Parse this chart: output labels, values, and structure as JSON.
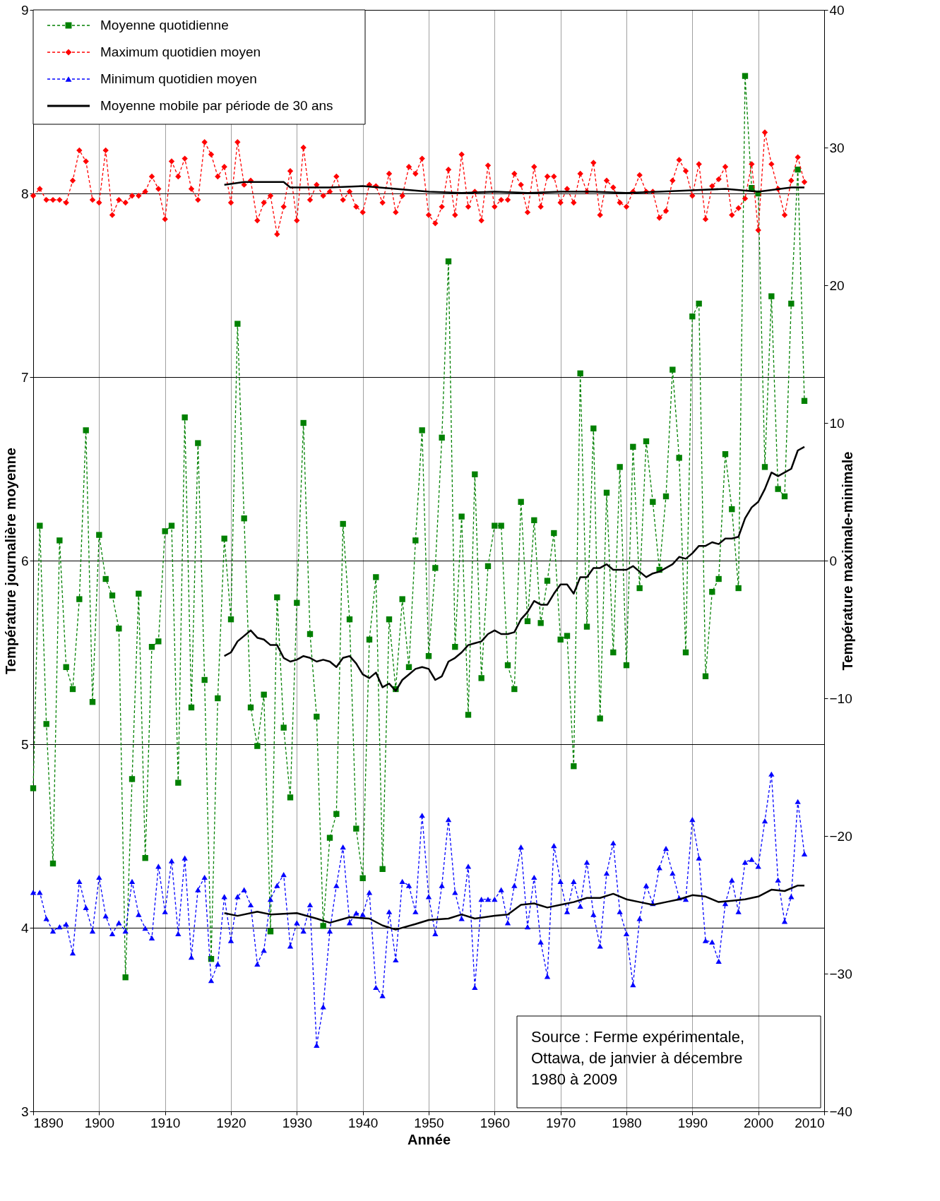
{
  "chart_data": {
    "type": "line",
    "xlabel": "Année",
    "ylabel": "Température journalière moyenne",
    "y2label": "Température maximale-minimale",
    "xlim": [
      1890,
      2010
    ],
    "xticks": [
      1890,
      1900,
      1910,
      1920,
      1930,
      1940,
      1950,
      1960,
      1970,
      1980,
      1990,
      2000,
      2010
    ],
    "ylim": [
      3,
      9
    ],
    "yticks": [
      3,
      4,
      5,
      6,
      7,
      8,
      9
    ],
    "y2lim": [
      -40,
      40
    ],
    "y2ticks": [
      -40,
      -30,
      -20,
      -10,
      0,
      10,
      20,
      30,
      40
    ],
    "grid": true,
    "legend": "top left",
    "annotations": [
      "Source : Ferme expérimentale,\nOttawa, de janvier à décembre\n1980 à 2009"
    ],
    "x": [
      1890,
      1891,
      1892,
      1893,
      1894,
      1895,
      1896,
      1897,
      1898,
      1899,
      1900,
      1901,
      1902,
      1903,
      1904,
      1905,
      1906,
      1907,
      1908,
      1909,
      1910,
      1911,
      1912,
      1913,
      1914,
      1915,
      1916,
      1917,
      1918,
      1919,
      1920,
      1921,
      1922,
      1923,
      1924,
      1925,
      1926,
      1927,
      1928,
      1929,
      1930,
      1931,
      1932,
      1933,
      1934,
      1935,
      1936,
      1937,
      1938,
      1939,
      1940,
      1941,
      1942,
      1943,
      1944,
      1945,
      1946,
      1947,
      1948,
      1949,
      1950,
      1951,
      1952,
      1953,
      1954,
      1955,
      1956,
      1957,
      1958,
      1959,
      1960,
      1961,
      1962,
      1963,
      1964,
      1965,
      1966,
      1967,
      1968,
      1969,
      1970,
      1971,
      1972,
      1973,
      1974,
      1975,
      1976,
      1977,
      1978,
      1979,
      1980,
      1981,
      1982,
      1983,
      1984,
      1985,
      1986,
      1987,
      1988,
      1989,
      1990,
      1991,
      1992,
      1993,
      1994,
      1995,
      1996,
      1997,
      1998,
      1999,
      2000,
      2001,
      2002,
      2003,
      2004,
      2005,
      2006,
      2007
    ],
    "series": [
      {
        "name": "Moyenne quotidienne",
        "color": "#008000",
        "marker": "square",
        "line_style": "dashed",
        "values": [
          4.76,
          6.19,
          5.11,
          4.35,
          6.11,
          5.42,
          5.3,
          5.79,
          6.71,
          5.23,
          6.14,
          5.9,
          5.81,
          5.63,
          3.73,
          4.81,
          5.82,
          4.38,
          5.53,
          5.56,
          6.16,
          6.19,
          4.79,
          6.78,
          5.2,
          6.64,
          5.35,
          3.83,
          5.25,
          6.12,
          5.68,
          7.29,
          6.23,
          5.2,
          4.99,
          5.27,
          3.98,
          5.8,
          5.09,
          4.71,
          5.77,
          6.75,
          5.6,
          5.15,
          4.01,
          4.49,
          4.62,
          6.2,
          5.68,
          4.54,
          4.27,
          5.57,
          5.91,
          4.32,
          5.68,
          5.3,
          5.79,
          5.42,
          6.11,
          6.71,
          5.48,
          5.96,
          6.67,
          7.63,
          5.53,
          6.24,
          5.16,
          6.47,
          5.36,
          5.97,
          6.19,
          6.19,
          5.43,
          5.3,
          6.32,
          5.67,
          6.22,
          5.66,
          5.89,
          6.15,
          5.57,
          5.59,
          4.88,
          7.02,
          5.64,
          6.72,
          5.14,
          6.37,
          5.5,
          6.51,
          5.43,
          6.62,
          5.85,
          6.65,
          6.32,
          5.95,
          6.35,
          7.04,
          6.56,
          5.5,
          7.33,
          7.4,
          5.37,
          5.83,
          5.9,
          6.58,
          6.28,
          5.85,
          8.64,
          8.03,
          8.0,
          6.51,
          7.44,
          6.39,
          6.35,
          7.4,
          8.13,
          6.87
        ]
      },
      {
        "name": "Maximum quotidien moyen",
        "color": "#ff0000",
        "marker": "diamond",
        "line_style": "dashed",
        "axis": "y2",
        "values": [
          26.5,
          27.0,
          26.2,
          26.2,
          26.2,
          26.0,
          27.6,
          29.8,
          29.0,
          26.2,
          26.0,
          29.8,
          25.1,
          26.2,
          26.0,
          26.5,
          26.5,
          26.8,
          27.9,
          27.0,
          24.8,
          29.0,
          27.9,
          29.2,
          27.0,
          26.2,
          30.4,
          29.5,
          27.9,
          28.6,
          26.0,
          30.4,
          27.3,
          27.6,
          24.7,
          26.0,
          26.5,
          23.7,
          25.7,
          28.3,
          24.7,
          30.0,
          26.2,
          27.3,
          26.5,
          26.8,
          27.9,
          26.2,
          26.8,
          25.7,
          25.3,
          27.3,
          27.2,
          26.0,
          28.1,
          25.3,
          26.5,
          28.6,
          28.1,
          29.2,
          25.1,
          24.5,
          25.7,
          28.4,
          25.1,
          29.5,
          25.7,
          26.8,
          24.7,
          28.7,
          25.7,
          26.2,
          26.2,
          28.1,
          27.3,
          25.3,
          28.6,
          25.7,
          27.9,
          27.9,
          26.0,
          27.0,
          26.0,
          28.1,
          26.8,
          28.9,
          25.1,
          27.6,
          27.1,
          26.0,
          25.7,
          26.8,
          28.0,
          26.8,
          26.8,
          24.9,
          25.4,
          27.6,
          29.1,
          28.3,
          26.5,
          28.8,
          24.8,
          27.2,
          27.7,
          28.6,
          25.1,
          25.6,
          26.3,
          28.8,
          24.0,
          31.1,
          28.8,
          27.0,
          25.1,
          27.6,
          29.3,
          27.5
        ]
      },
      {
        "name": "Minimum quotidien moyen",
        "color": "#0000ff",
        "marker": "triangle",
        "line_style": "dashed",
        "axis": "y2",
        "values": [
          -24.1,
          -24.1,
          -26.0,
          -26.9,
          -26.6,
          -26.4,
          -28.5,
          -23.3,
          -25.2,
          -26.9,
          -23.0,
          -25.8,
          -27.1,
          -26.3,
          -26.9,
          -23.3,
          -25.7,
          -26.7,
          -27.4,
          -22.2,
          -25.5,
          -21.8,
          -27.1,
          -21.6,
          -28.8,
          -23.9,
          -23.0,
          -30.5,
          -29.3,
          -24.4,
          -27.6,
          -24.4,
          -23.9,
          -25.0,
          -29.3,
          -28.3,
          -24.6,
          -23.6,
          -22.8,
          -28.0,
          -26.3,
          -26.9,
          -25.0,
          -35.2,
          -32.4,
          -26.9,
          -23.6,
          -20.8,
          -26.3,
          -25.6,
          -25.7,
          -24.1,
          -31.0,
          -31.6,
          -25.5,
          -29.0,
          -23.3,
          -23.6,
          -25.5,
          -18.5,
          -24.4,
          -27.1,
          -23.6,
          -18.8,
          -24.1,
          -26.0,
          -22.2,
          -31.0,
          -24.6,
          -24.6,
          -24.6,
          -23.9,
          -26.3,
          -23.6,
          -20.8,
          -26.6,
          -23.0,
          -27.7,
          -30.2,
          -20.7,
          -23.3,
          -25.5,
          -23.3,
          -25.1,
          -21.9,
          -25.7,
          -28.0,
          -22.7,
          -20.5,
          -25.5,
          -27.1,
          -30.8,
          -26.0,
          -23.6,
          -24.9,
          -22.3,
          -20.9,
          -22.7,
          -24.5,
          -24.6,
          -18.8,
          -21.6,
          -27.6,
          -27.7,
          -29.1,
          -24.9,
          -23.2,
          -25.5,
          -21.9,
          -21.7,
          -22.2,
          -18.9,
          -15.5,
          -23.2,
          -26.2,
          -24.4,
          -17.5,
          -21.3
        ]
      },
      {
        "name": "Moyenne mobile par période de 30 ans",
        "color": "#000000",
        "marker": "none",
        "line_style": "solid",
        "x": [
          1919,
          1920,
          1921,
          1922,
          1923,
          1924,
          1925,
          1926,
          1927,
          1928,
          1929,
          1930,
          1931,
          1932,
          1933,
          1934,
          1935,
          1936,
          1937,
          1938,
          1939,
          1940,
          1941,
          1942,
          1943,
          1944,
          1945,
          1946,
          1947,
          1948,
          1949,
          1950,
          1951,
          1952,
          1953,
          1954,
          1955,
          1956,
          1957,
          1958,
          1959,
          1960,
          1961,
          1962,
          1963,
          1964,
          1965,
          1966,
          1967,
          1968,
          1969,
          1970,
          1971,
          1972,
          1973,
          1974,
          1975,
          1976,
          1977,
          1978,
          1979,
          1980,
          1981,
          1982,
          1983,
          1984,
          1985,
          1986,
          1987,
          1988,
          1989,
          1990,
          1991,
          1992,
          1993,
          1994,
          1995,
          1996,
          1997,
          1998,
          1999,
          2000,
          2001,
          2002,
          2003,
          2004,
          2005,
          2006,
          2007
        ],
        "values": [
          5.48,
          5.5,
          5.56,
          5.59,
          5.62,
          5.58,
          5.57,
          5.54,
          5.54,
          5.47,
          5.45,
          5.46,
          5.48,
          5.47,
          5.45,
          5.46,
          5.45,
          5.42,
          5.47,
          5.48,
          5.44,
          5.38,
          5.36,
          5.39,
          5.31,
          5.33,
          5.29,
          5.35,
          5.38,
          5.41,
          5.42,
          5.41,
          5.35,
          5.37,
          5.45,
          5.47,
          5.5,
          5.54,
          5.55,
          5.56,
          5.6,
          5.62,
          5.6,
          5.6,
          5.61,
          5.68,
          5.72,
          5.78,
          5.76,
          5.76,
          5.82,
          5.87,
          5.87,
          5.82,
          5.91,
          5.91,
          5.96,
          5.96,
          5.98,
          5.95,
          5.95,
          5.95,
          5.97,
          5.94,
          5.91,
          5.93,
          5.94,
          5.96,
          5.98,
          6.02,
          6.01,
          6.04,
          6.08,
          6.08,
          6.1,
          6.09,
          6.12,
          6.12,
          6.13,
          6.23,
          6.29,
          6.32,
          6.39,
          6.48,
          6.46,
          6.48,
          6.5,
          6.6,
          6.62
        ]
      },
      {
        "color": "#000000",
        "marker": "none",
        "line_style": "solid",
        "axis": "y2",
        "x": [
          1919,
          1922,
          1925,
          1928,
          1929,
          1935,
          1940,
          1945,
          1950,
          1955,
          1960,
          1965,
          1970,
          1975,
          1980,
          1985,
          1990,
          1995,
          2000,
          2005,
          2007
        ],
        "values": [
          27.3,
          27.5,
          27.5,
          27.5,
          27.1,
          27.1,
          27.2,
          27.0,
          26.8,
          26.7,
          26.8,
          26.7,
          26.8,
          26.8,
          26.7,
          26.8,
          26.9,
          27.0,
          26.8,
          27.1,
          27.1
        ]
      },
      {
        "color": "#000000",
        "marker": "none",
        "line_style": "solid",
        "axis": "y2",
        "x": [
          1919,
          1921,
          1924,
          1926,
          1930,
          1933,
          1935,
          1938,
          1941,
          1943,
          1945,
          1948,
          1950,
          1953,
          1955,
          1957,
          1960,
          1962,
          1964,
          1966,
          1968,
          1970,
          1972,
          1974,
          1976,
          1978,
          1980,
          1982,
          1984,
          1986,
          1988,
          1990,
          1992,
          1994,
          1996,
          1998,
          2000,
          2002,
          2004,
          2006,
          2007
        ],
        "values": [
          -25.6,
          -25.8,
          -25.5,
          -25.7,
          -25.6,
          -26.0,
          -26.3,
          -25.9,
          -26.0,
          -26.5,
          -26.8,
          -26.4,
          -26.1,
          -26.0,
          -25.7,
          -26.0,
          -25.8,
          -25.7,
          -25.0,
          -24.9,
          -25.2,
          -25.0,
          -24.8,
          -24.5,
          -24.5,
          -24.2,
          -24.6,
          -24.8,
          -25.0,
          -24.8,
          -24.6,
          -24.3,
          -24.4,
          -24.8,
          -24.7,
          -24.6,
          -24.4,
          -23.9,
          -24.0,
          -23.6,
          -23.6
        ]
      }
    ]
  }
}
